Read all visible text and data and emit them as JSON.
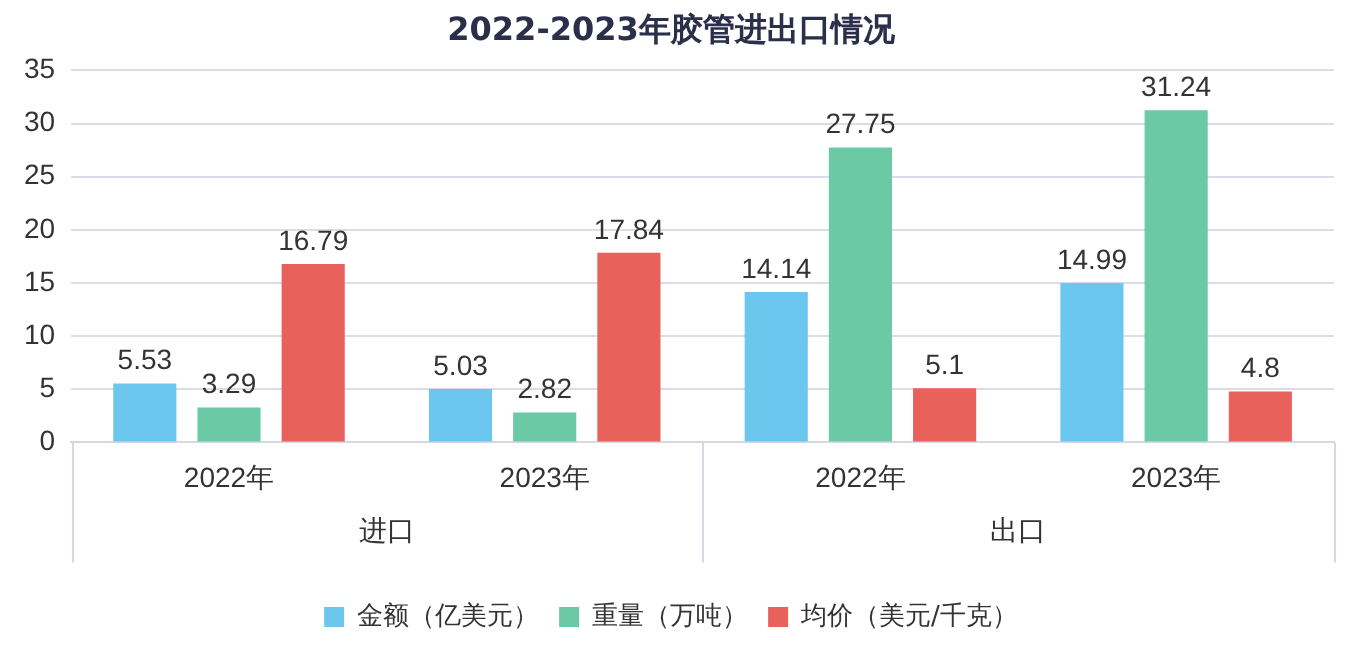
{
  "chart_data": {
    "type": "bar",
    "title": "2022-2023年胶管进出口情况",
    "categories": [
      "2022年",
      "2023年",
      "2022年",
      "2023年"
    ],
    "annotations": [
      "进口",
      "出口"
    ],
    "series": [
      {
        "name": "金额（亿美元）",
        "color": "#6cc7ee",
        "values": [
          5.53,
          5.03,
          14.14,
          14.99
        ]
      },
      {
        "name": "重量（万吨）",
        "color": "#6cc9a6",
        "values": [
          3.29,
          2.82,
          27.75,
          31.24
        ]
      },
      {
        "name": "均价（美元/千克）",
        "color": "#e8615a",
        "values": [
          16.79,
          17.84,
          5.1,
          4.8
        ]
      }
    ],
    "ylim": [
      0,
      35
    ],
    "yticks": [
      0,
      5,
      10,
      15,
      20,
      25,
      30,
      35
    ],
    "grid": "y",
    "legend": "bottom",
    "data_labels": true
  }
}
